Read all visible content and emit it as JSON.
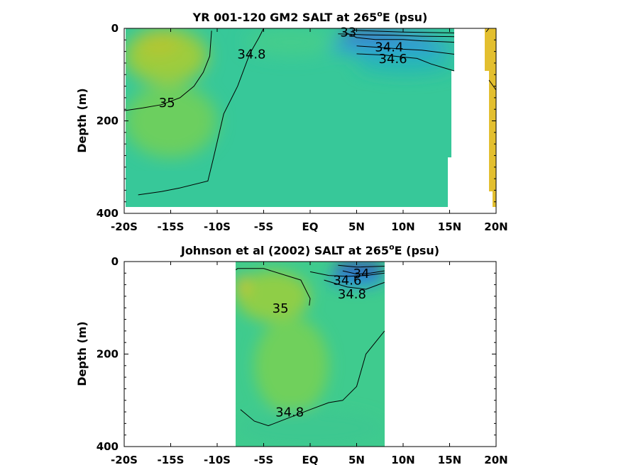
{
  "chart_data": [
    {
      "type": "heatmap",
      "title_main": "YR 001-120 GM2 SALT at 265",
      "title_sup": "o",
      "title_tail": "E (psu)",
      "ylabel": "Depth (m)",
      "x_ticks": [
        {
          "value": -20,
          "label": "-20S"
        },
        {
          "value": -15,
          "label": "-15S"
        },
        {
          "value": -10,
          "label": "-10S"
        },
        {
          "value": -5,
          "label": "-5S"
        },
        {
          "value": 0,
          "label": "EQ"
        },
        {
          "value": 5,
          "label": "5N"
        },
        {
          "value": 10,
          "label": "10N"
        },
        {
          "value": 15,
          "label": "15N"
        },
        {
          "value": 20,
          "label": "20N"
        }
      ],
      "y_ticks": [
        {
          "value": 0,
          "label": "0"
        },
        {
          "value": 200,
          "label": "200"
        },
        {
          "value": 400,
          "label": "400"
        }
      ],
      "xlim": [
        -20,
        20
      ],
      "ylim_depth": [
        0,
        400
      ],
      "colors": {
        "fresh": "#3a2a9a",
        "mid": "#3ccc99",
        "salty": "#e8c230",
        "base": "#37c899"
      },
      "salinity_patches": [
        {
          "x": [
            -20,
            -11
          ],
          "depth": [
            0,
            120
          ],
          "salinity": 35.3,
          "color": "#9ccc3c"
        },
        {
          "x": [
            -18.5,
            -14
          ],
          "depth": [
            5,
            60
          ],
          "salinity": 35.5,
          "color": "#b3c633"
        },
        {
          "x": [
            -20,
            -10
          ],
          "depth": [
            120,
            280
          ],
          "salinity": 35.0,
          "color": "#6ccf5f"
        },
        {
          "x": [
            -7,
            3
          ],
          "depth": [
            0,
            60
          ],
          "salinity": 34.9,
          "color": "#45cd8c"
        },
        {
          "x": [
            3,
            10
          ],
          "depth": [
            0,
            10
          ],
          "salinity": 33.0,
          "color": "#3b2f9c"
        },
        {
          "x": [
            3,
            13
          ],
          "depth": [
            10,
            25
          ],
          "salinity": 33.6,
          "color": "#4669d4"
        },
        {
          "x": [
            2,
            15.5
          ],
          "depth": [
            20,
            60
          ],
          "salinity": 34.2,
          "color": "#2f9fd6"
        },
        {
          "x": [
            5,
            15.5
          ],
          "depth": [
            55,
            100
          ],
          "salinity": 34.6,
          "color": "#27b8b4"
        },
        {
          "x": [
            19,
            20
          ],
          "depth": [
            0,
            390
          ],
          "salinity": 35.7,
          "color": "#e3bf2f"
        }
      ],
      "contours": [
        {
          "label": "35",
          "label_at": [
            -15.4,
            170
          ],
          "x": [
            -20,
            -18,
            -16,
            -14,
            -12.5,
            -11.5,
            -10.8,
            -10.6
          ],
          "depth": [
            178,
            172,
            165,
            150,
            125,
            95,
            60,
            5
          ]
        },
        {
          "label": "34.8",
          "label_at": [
            -6.3,
            65
          ],
          "x": [
            -18.5,
            -16,
            -14,
            -11,
            -10.4,
            -9.3,
            -7.8,
            -6.5,
            -5.5,
            -5
          ],
          "depth": [
            360,
            353,
            345,
            330,
            280,
            185,
            125,
            55,
            20,
            0
          ]
        },
        {
          "label": "34.6",
          "label_at": [
            8.9,
            75
          ],
          "x": [
            5,
            8,
            10,
            11.5,
            13,
            15.5
          ],
          "depth": [
            55,
            58,
            62,
            65,
            77,
            92
          ]
        },
        {
          "label": "34.4",
          "label_at": [
            8.5,
            50
          ],
          "x": [
            5,
            8,
            10,
            12,
            15.5
          ],
          "depth": [
            38,
            42,
            45,
            47,
            56
          ]
        },
        {
          "label": "33",
          "label_at": [
            4.1,
            18
          ],
          "x": [
            3.7,
            5,
            7,
            10,
            12,
            15.5
          ],
          "depth": [
            8,
            20,
            24,
            24,
            27,
            30
          ]
        },
        {
          "label": "",
          "label_at": null,
          "x": [
            3,
            6,
            9,
            12,
            15.5
          ],
          "depth": [
            12,
            14,
            15,
            17,
            18
          ]
        },
        {
          "label": "",
          "label_at": null,
          "x": [
            4.5,
            7,
            10,
            15.5
          ],
          "depth": [
            4,
            6,
            8,
            10
          ]
        }
      ]
    },
    {
      "type": "heatmap",
      "title_main": "Johnson et al (2002) SALT at 265",
      "title_sup": "o",
      "title_tail": "E (psu)",
      "ylabel": "Depth (m)",
      "x_ticks": [
        {
          "value": -20,
          "label": "-20S"
        },
        {
          "value": -15,
          "label": "-15S"
        },
        {
          "value": -10,
          "label": "-10S"
        },
        {
          "value": -5,
          "label": "-5S"
        },
        {
          "value": 0,
          "label": "EQ"
        },
        {
          "value": 5,
          "label": "5N"
        },
        {
          "value": 10,
          "label": "10N"
        },
        {
          "value": 15,
          "label": "15N"
        },
        {
          "value": 20,
          "label": "20N"
        }
      ],
      "y_ticks": [
        {
          "value": 0,
          "label": "0"
        },
        {
          "value": 200,
          "label": "200"
        },
        {
          "value": 400,
          "label": "400"
        }
      ],
      "xlim": [
        -20,
        20
      ],
      "ylim_depth": [
        0,
        400
      ],
      "data_extent_x": [
        -8,
        8
      ],
      "salinity_patches": [
        {
          "x": [
            -8,
            0
          ],
          "depth": [
            20,
            130
          ],
          "salinity": 35.2,
          "color": "#8fce46"
        },
        {
          "x": [
            -8,
            -6.6
          ],
          "depth": [
            30,
            75
          ],
          "salinity": 35.5,
          "color": "#c9c42e"
        },
        {
          "x": [
            -6,
            2
          ],
          "depth": [
            120,
            330
          ],
          "salinity": 35.0,
          "color": "#70d05c"
        },
        {
          "x": [
            2.5,
            8
          ],
          "depth": [
            0,
            25
          ],
          "salinity": 33.8,
          "color": "#3a3aa4"
        },
        {
          "x": [
            2,
            8
          ],
          "depth": [
            20,
            55
          ],
          "salinity": 34.3,
          "color": "#2b8fd8"
        },
        {
          "x": [
            -8,
            8
          ],
          "depth": [
            320,
            400
          ],
          "salinity": 34.8,
          "color": "#3cc890"
        }
      ],
      "contours": [
        {
          "label": "35",
          "label_at": [
            -3.2,
            110
          ],
          "x": [
            -8,
            -7.8,
            -5,
            -1,
            0,
            -0.1
          ],
          "depth": [
            18,
            15,
            15,
            40,
            80,
            95
          ]
        },
        {
          "label": "34.8",
          "label_at": [
            -2.2,
            335
          ],
          "x": [
            -7.5,
            -6,
            -4.5,
            0,
            2,
            3.5,
            5,
            6,
            7,
            8
          ],
          "depth": [
            320,
            345,
            355,
            320,
            305,
            300,
            270,
            200,
            175,
            150
          ]
        },
        {
          "label": "34.6",
          "label_at": [
            4,
            50
          ],
          "x": [
            0,
            2,
            4,
            6,
            8
          ],
          "depth": [
            22,
            30,
            32,
            30,
            25
          ]
        },
        {
          "label": "34.8",
          "label_at": [
            4.5,
            80
          ],
          "x": [
            1.5,
            4,
            6,
            8
          ],
          "depth": [
            40,
            55,
            60,
            45
          ]
        },
        {
          "label": "34",
          "label_at": [
            5.5,
            35
          ],
          "x": [
            3.5,
            5,
            6.5,
            8
          ],
          "depth": [
            20,
            27,
            25,
            20
          ]
        },
        {
          "label": "",
          "label_at": null,
          "x": [
            3,
            5,
            8
          ],
          "depth": [
            8,
            12,
            10
          ]
        }
      ]
    }
  ]
}
